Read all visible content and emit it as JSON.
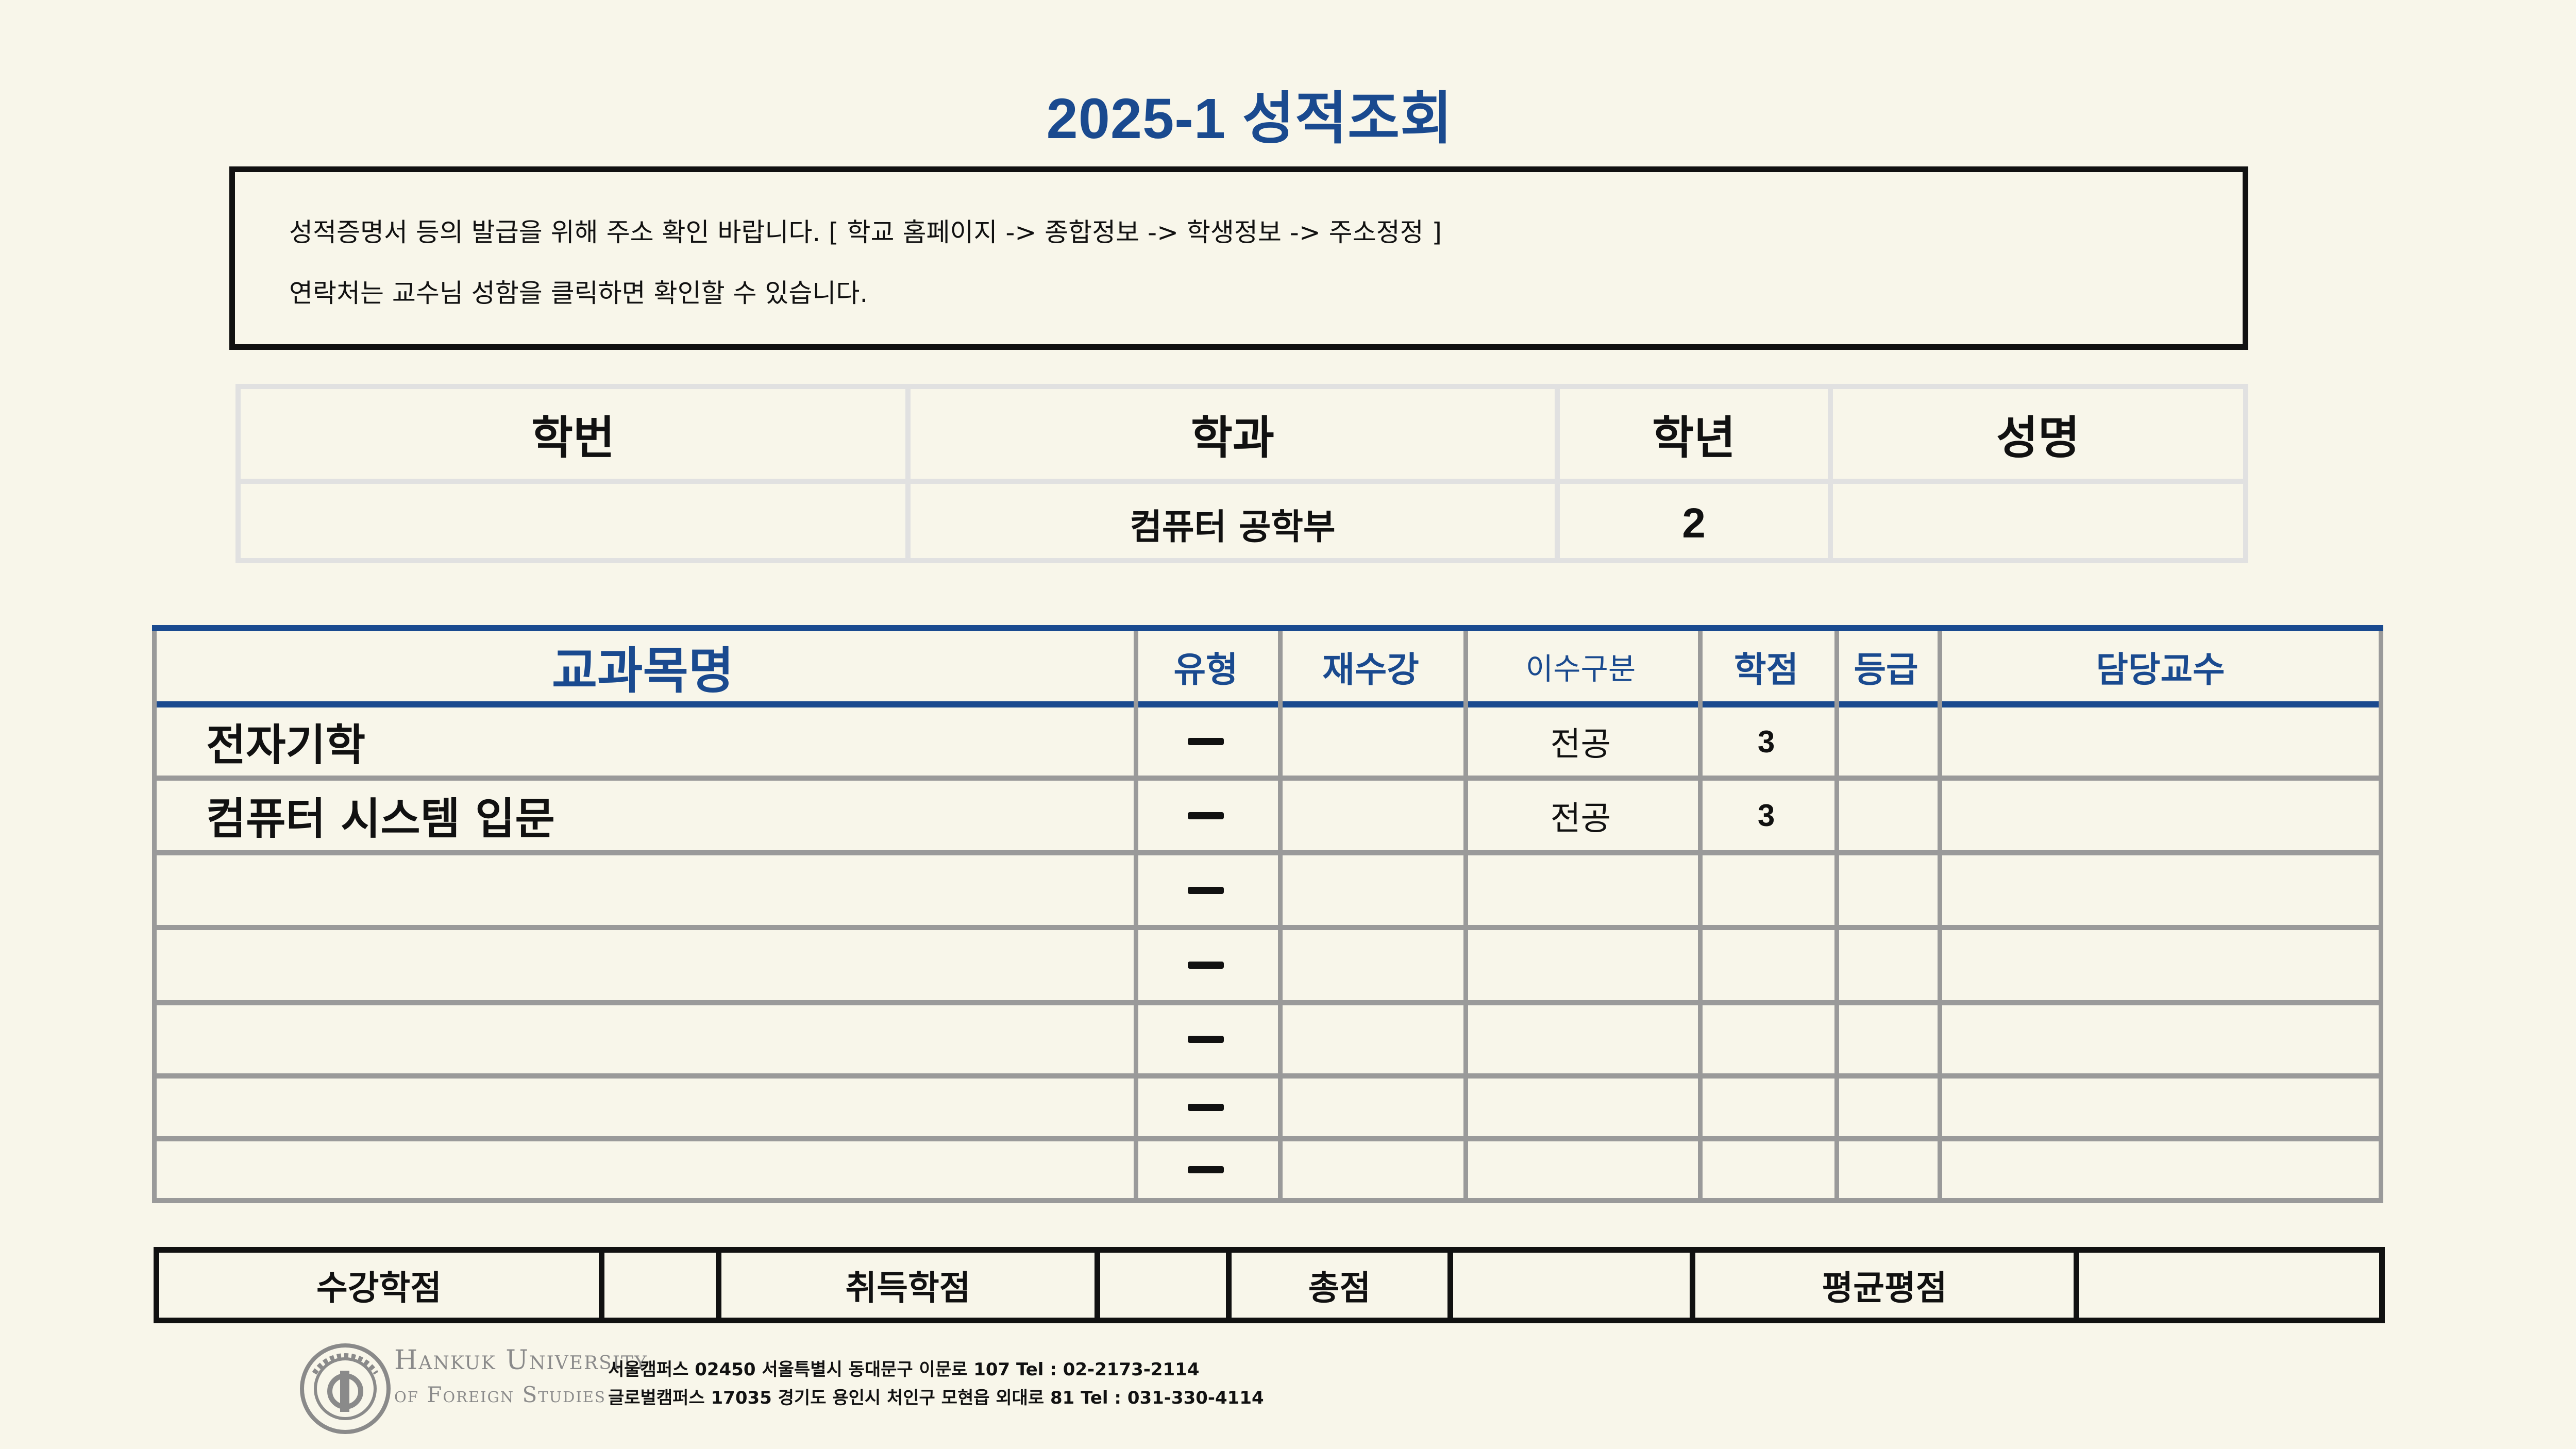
{
  "page_title": "2025-1   성적조회",
  "notice": {
    "line1": "성적증명서 등의 발급을 위해 주소 확인 바랍니다. [ 학교 홈페이지 -> 종합정보 -> 학생정보 -> 주소정정 ]",
    "line2": "연락처는 교수님 성함을 클릭하면 확인할 수 있습니다."
  },
  "student_info": {
    "headers": [
      "학번",
      "학과",
      "학년",
      "성명"
    ],
    "student_id": "",
    "department": "컴퓨터 공학부",
    "year": "2",
    "name": ""
  },
  "courses": {
    "headers": {
      "course_name": "교과목명",
      "type": "유형",
      "retake": "재수강",
      "category": "이수구분",
      "credits": "학점",
      "grade": "등급",
      "professor": "담당교수"
    },
    "rows": [
      {
        "course_name": "전자기학",
        "type": "dash",
        "retake": "",
        "category": "전공",
        "credits": "3",
        "grade": "",
        "professor": ""
      },
      {
        "course_name": "컴퓨터 시스템 입문",
        "type": "dash",
        "retake": "",
        "category": "전공",
        "credits": "3",
        "grade": "",
        "professor": ""
      },
      {
        "course_name": "",
        "type": "dash",
        "retake": "",
        "category": "",
        "credits": "",
        "grade": "",
        "professor": ""
      },
      {
        "course_name": "",
        "type": "dash",
        "retake": "",
        "category": "",
        "credits": "",
        "grade": "",
        "professor": ""
      },
      {
        "course_name": "",
        "type": "dash",
        "retake": "",
        "category": "",
        "credits": "",
        "grade": "",
        "professor": ""
      },
      {
        "course_name": "",
        "type": "dash",
        "retake": "",
        "category": "",
        "credits": "",
        "grade": "",
        "professor": ""
      },
      {
        "course_name": "",
        "type": "dash",
        "retake": "",
        "category": "",
        "credits": "",
        "grade": "",
        "professor": ""
      }
    ]
  },
  "summary": {
    "attempted_label": "수강학점",
    "attempted_value": "",
    "earned_label": "취득학점",
    "earned_value": "",
    "total_label": "총점",
    "total_value": "",
    "gpa_label": "평균평점",
    "gpa_value": ""
  },
  "footer": {
    "logo_line1": "Hankuk University",
    "logo_line2": "of Foreign Studies",
    "seoul_address": "서울캠퍼스 02450 서울특별시 동대문구 이문로 107 Tel : 02-2173-2114",
    "global_address": "글로벌캠퍼스 17035 경기도 용인시 처인구 모현읍 외대로 81 Tel : 031-330-4114"
  },
  "colors": {
    "background": "#f8f6ea",
    "accent": "#1a4a8f",
    "grid_gray": "#9a9a9a",
    "info_border": "#e1e1e1"
  }
}
